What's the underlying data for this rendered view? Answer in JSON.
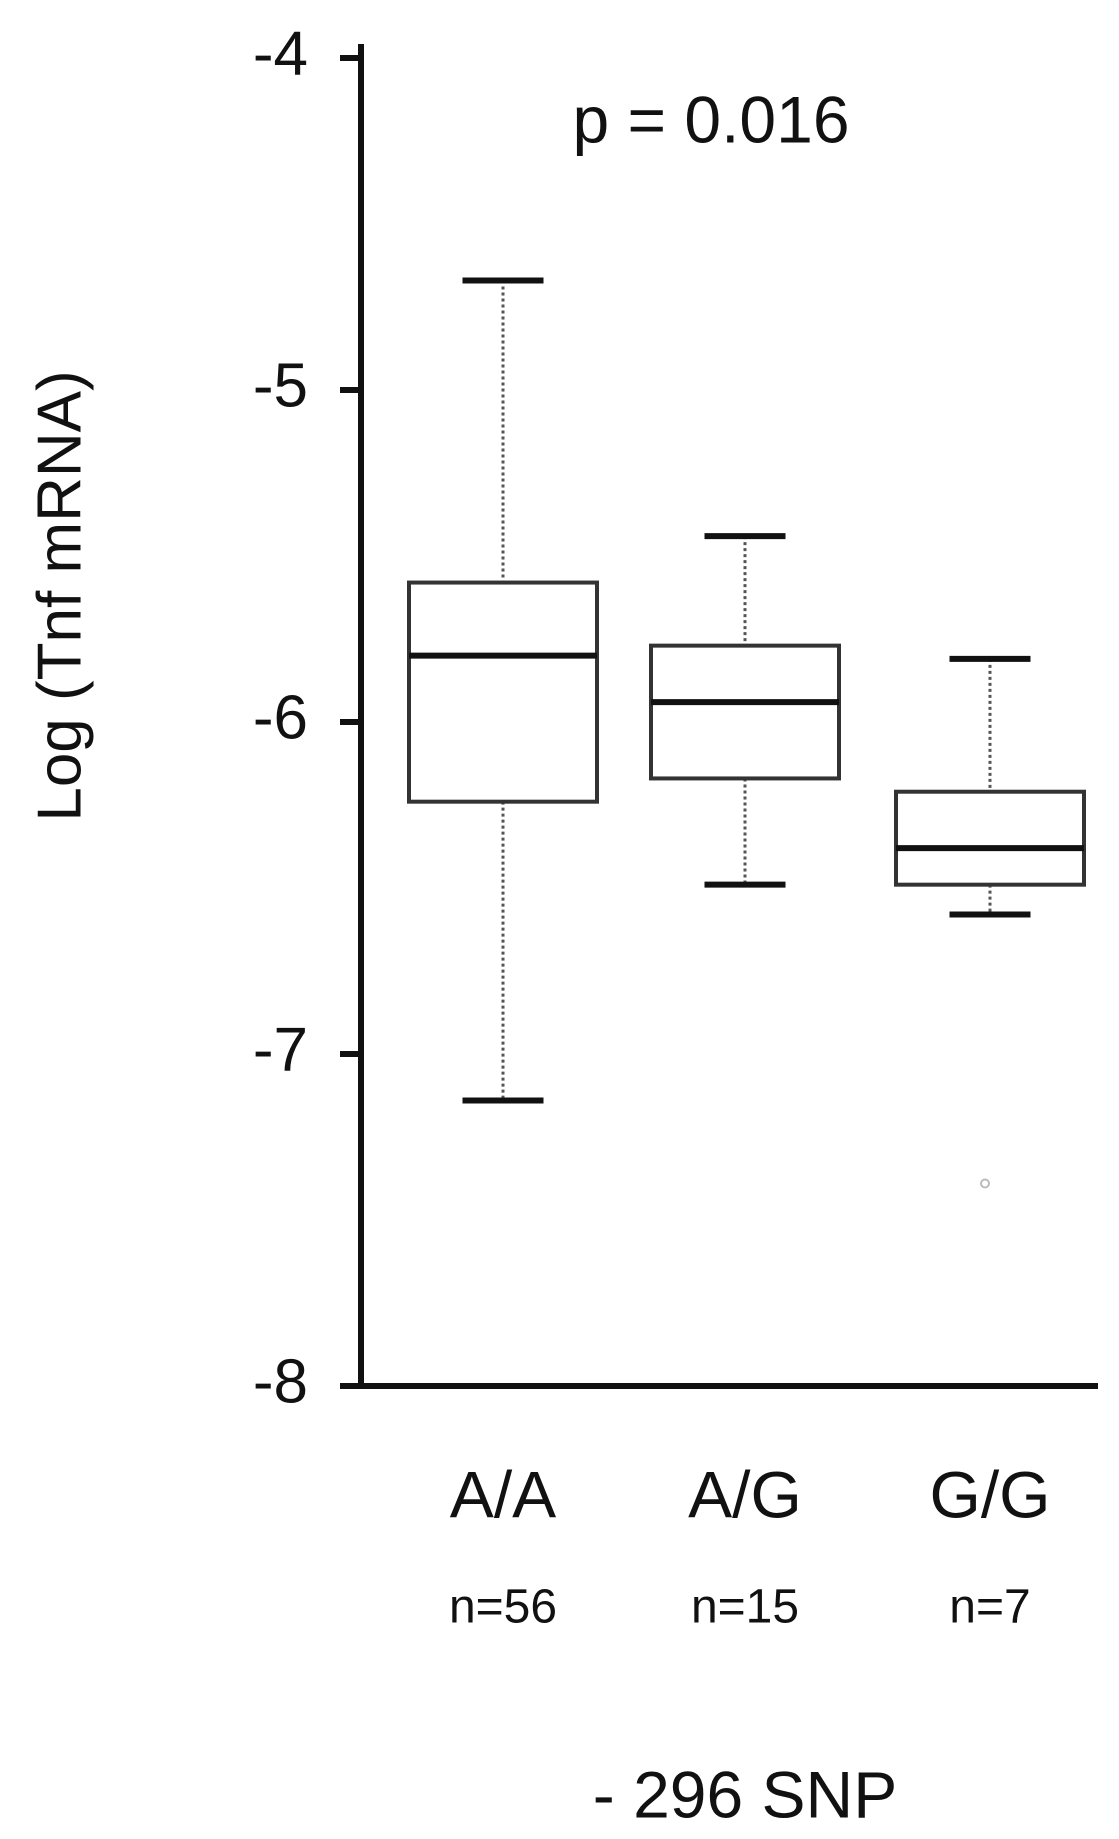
{
  "chart_data": {
    "type": "box",
    "annotation": "p = 0.016",
    "y_label": "Log (Tnf mRNA)",
    "x_label": "- 296 SNP",
    "categories": [
      "A/A",
      "A/G",
      "G/G"
    ],
    "sample_sizes": [
      "n=56",
      "n=15",
      "n=7"
    ],
    "whisker_high": [
      -4.67,
      -5.44,
      -5.81
    ],
    "q3": [
      -5.58,
      -5.77,
      -6.21
    ],
    "median": [
      -5.8,
      -5.94,
      -6.38
    ],
    "q1": [
      -6.24,
      -6.17,
      -6.49
    ],
    "whisker_low": [
      -7.14,
      -6.49,
      -6.58
    ],
    "outliers": [
      [],
      [],
      [
        -7.39
      ]
    ],
    "ylim": [
      -8,
      -4
    ],
    "yticks": [
      -4,
      -5,
      -6,
      -7,
      -8
    ]
  }
}
